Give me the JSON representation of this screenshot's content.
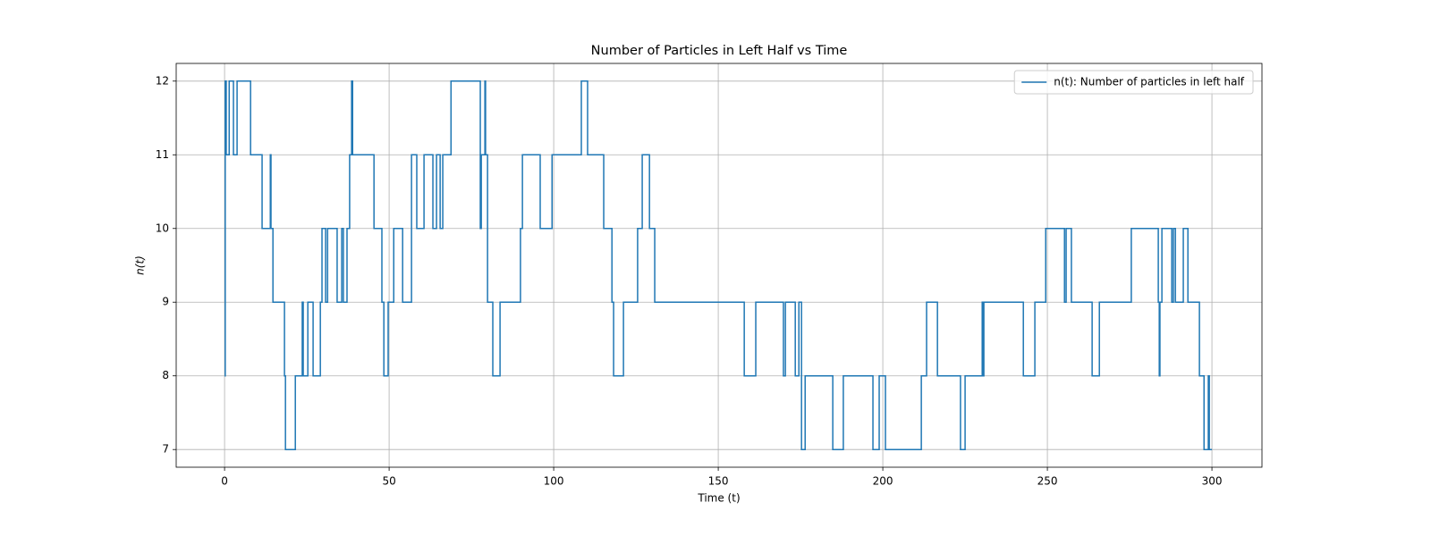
{
  "chart_data": {
    "type": "line",
    "step": "post",
    "title": "Number of Particles in Left Half vs Time",
    "xlabel": "Time (t)",
    "ylabel": "n(t)",
    "xlim": [
      -14.7,
      315.2
    ],
    "ylim": [
      6.76,
      12.24
    ],
    "xticks": [
      0,
      50,
      100,
      150,
      200,
      250,
      300
    ],
    "yticks": [
      7,
      8,
      9,
      10,
      11,
      12
    ],
    "grid": true,
    "legend": "upper right",
    "series": [
      {
        "name": "n(t): Number of particles in left half",
        "color": "#1f77b4",
        "x": [
          0.0,
          0.2,
          0.5,
          1.4,
          2.7,
          3.8,
          7.9,
          11.4,
          13.9,
          14.1,
          14.7,
          18.2,
          18.5,
          21.5,
          23.6,
          23.9,
          25.3,
          26.9,
          29.1,
          29.6,
          30.7,
          31.3,
          34.2,
          35.6,
          36.1,
          37.2,
          38.0,
          38.6,
          38.9,
          45.4,
          47.8,
          48.4,
          49.7,
          51.4,
          54.1,
          56.8,
          58.4,
          60.6,
          63.3,
          64.4,
          65.5,
          66.3,
          68.8,
          77.7,
          78.0,
          79.1,
          79.3,
          79.9,
          81.5,
          83.7,
          89.9,
          90.5,
          95.9,
          99.5,
          108.4,
          110.3,
          115.2,
          117.7,
          118.2,
          121.2,
          125.5,
          126.9,
          129.1,
          130.7,
          157.9,
          161.4,
          169.8,
          170.4,
          173.4,
          174.5,
          175.3,
          176.4,
          184.8,
          188.0,
          197.0,
          198.9,
          200.8,
          211.7,
          213.3,
          216.6,
          223.6,
          225.0,
          230.2,
          230.4,
          230.7,
          242.7,
          246.2,
          249.5,
          255.2,
          255.7,
          257.3,
          263.6,
          265.8,
          275.5,
          283.7,
          284.0,
          284.2,
          284.8,
          287.8,
          288.3,
          288.9,
          291.3,
          292.7,
          296.2,
          297.6,
          298.9,
          299.2,
          300.0
        ],
        "values": [
          8,
          12,
          11,
          12,
          11,
          12,
          11,
          10,
          11,
          10,
          9,
          8,
          7,
          8,
          9,
          8,
          9,
          8,
          9,
          10,
          9,
          10,
          9,
          10,
          9,
          10,
          11,
          12,
          11,
          10,
          9,
          8,
          9,
          10,
          9,
          11,
          10,
          11,
          10,
          11,
          10,
          11,
          12,
          10,
          11,
          12,
          11,
          9,
          8,
          9,
          10,
          11,
          10,
          11,
          12,
          11,
          10,
          9,
          8,
          9,
          10,
          11,
          10,
          9,
          8,
          9,
          8,
          9,
          8,
          9,
          7,
          8,
          7,
          8,
          7,
          8,
          7,
          8,
          9,
          8,
          7,
          8,
          9,
          8,
          9,
          8,
          9,
          10,
          9,
          10,
          9,
          8,
          9,
          10,
          9,
          8,
          9,
          10,
          9,
          10,
          9,
          10,
          9,
          8,
          7,
          8,
          7,
          7
        ]
      }
    ]
  }
}
